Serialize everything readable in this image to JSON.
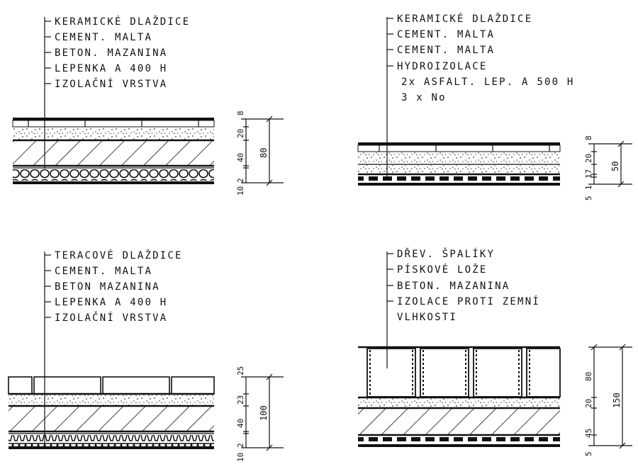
{
  "details": [
    {
      "id": "a",
      "layers": [
        "KERAMICKÉ DLAŽDICE",
        "CEMENT. MALTA",
        "BETON. MAZANINA",
        "LEPENKA  A 400 H",
        "IZOLAČNÍ VRSTVA"
      ],
      "dims_small": [
        "10",
        "2",
        "40",
        "20",
        "8"
      ],
      "dim_total": "80"
    },
    {
      "id": "b",
      "layers": [
        "KERAMICKÉ  DLAŽDICE",
        "CEMENT. MALTA",
        "CEMENT. MALTA",
        "HYDROIZOLACE",
        "2x ASFALT. LEP.  A 500 H",
        "3 x No"
      ],
      "dims_small": [
        "5",
        "1",
        "17",
        "20",
        "8"
      ],
      "dim_total": "50"
    },
    {
      "id": "c",
      "layers": [
        "TERACOVÉ DLAŽDICE",
        "CEMENT. MALTA",
        "BETON MAZANINA",
        "LEPENKA   A 400 H",
        "IZOLAČNÍ VRSTVA"
      ],
      "dims_small": [
        "10",
        "2",
        "40",
        "23",
        "25"
      ],
      "dim_total": "100"
    },
    {
      "id": "d",
      "layers": [
        "DŘEV. ŠPALÍKY",
        "PÍSKOVÉ LOŽE",
        "BETON. MAZANINA",
        "IZOLACE PROTI ZEMNÍ",
        "VLHKOSTI"
      ],
      "dims_small": [
        "5",
        "45",
        "20",
        "80"
      ],
      "dim_total": "150"
    }
  ]
}
